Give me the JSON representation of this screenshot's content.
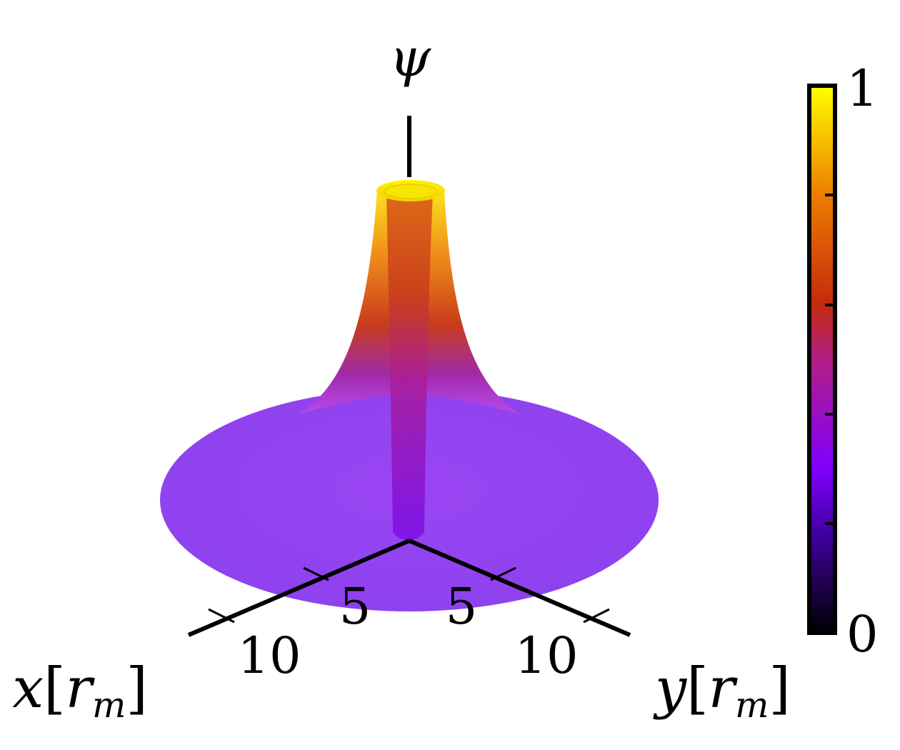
{
  "chart_data": {
    "type": "surface",
    "z_label": "ψ",
    "x_label": "x[r_m]",
    "y_label": "y[r_m]",
    "x_ticks": [
      5,
      10
    ],
    "y_ticks": [
      5,
      10
    ],
    "x_tick_labels": [
      "5",
      "10"
    ],
    "y_tick_labels": [
      "5",
      "10"
    ],
    "z_range": [
      0,
      1
    ],
    "colorbar": {
      "min_label": "0",
      "max_label": "1",
      "range": [
        0,
        1
      ],
      "colormap": "plasma",
      "stops": [
        "#0d0887",
        "#6a00a8",
        "#b12a90",
        "#e16462",
        "#fca636",
        "#f0f921"
      ]
    },
    "surface": {
      "profile": "radial vortex: psi tends to ~0.4 far away and rises toward 1 near the core",
      "far_value": 0.4,
      "peak_value": 1.0,
      "r_max": 15
    }
  }
}
